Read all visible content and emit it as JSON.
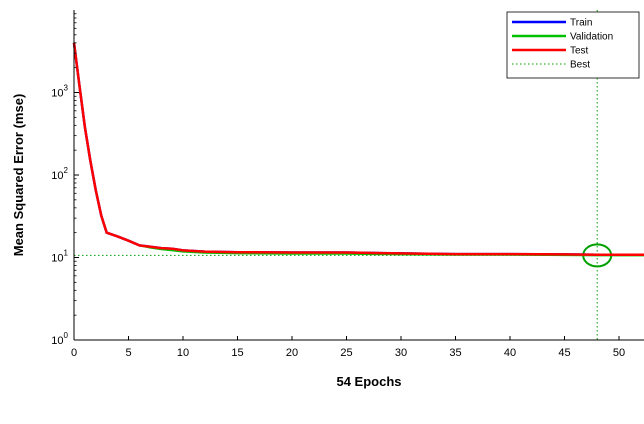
{
  "chart_data": {
    "type": "line",
    "title": "",
    "xlabel": "54 Epochs",
    "ylabel": "Mean Squared Error  (mse)",
    "xlim": [
      0,
      54
    ],
    "ylim": [
      1,
      10000
    ],
    "yscale": "log",
    "x_ticks": [
      0,
      5,
      10,
      15,
      20,
      25,
      30,
      35,
      40,
      45,
      50
    ],
    "y_ticks": [
      {
        "value": 1,
        "base": "10",
        "exp": "0"
      },
      {
        "value": 10,
        "base": "10",
        "exp": "1"
      },
      {
        "value": 100,
        "base": "10",
        "exp": "2"
      },
      {
        "value": 1000,
        "base": "10",
        "exp": "3"
      }
    ],
    "grid": false,
    "legend_position": "top-right",
    "series": [
      {
        "name": "Train",
        "color": "#0000ff",
        "x": [
          0,
          0.5,
          1,
          1.5,
          2,
          2.5,
          3,
          4,
          5,
          6,
          7,
          8,
          9,
          10,
          12,
          15,
          20,
          25,
          30,
          35,
          40,
          45,
          48,
          50,
          54
        ],
        "values": [
          4000,
          1200,
          380,
          150,
          65,
          32,
          20,
          18,
          16,
          14,
          13.5,
          13,
          12.8,
          12.2,
          11.8,
          11.6,
          11.5,
          11.5,
          11.2,
          11.0,
          11.0,
          10.9,
          10.8,
          10.8,
          10.8
        ]
      },
      {
        "name": "Validation",
        "color": "#00c000",
        "x": [
          0,
          0.5,
          1,
          1.5,
          2,
          2.5,
          3,
          4,
          5,
          6,
          7,
          8,
          9,
          10,
          12,
          15,
          20,
          25,
          30,
          35,
          40,
          45,
          48,
          50,
          54
        ],
        "values": [
          4000,
          1200,
          380,
          150,
          65,
          32,
          20,
          18,
          16,
          14,
          13.2,
          12.6,
          12.2,
          11.8,
          11.4,
          11.2,
          11.1,
          11.1,
          10.9,
          10.8,
          10.8,
          10.7,
          10.6,
          10.6,
          10.6
        ]
      },
      {
        "name": "Test",
        "color": "#ff0000",
        "x": [
          0,
          0.5,
          1,
          1.5,
          2,
          2.5,
          3,
          4,
          5,
          6,
          7,
          8,
          9,
          10,
          12,
          15,
          20,
          25,
          30,
          35,
          40,
          45,
          48,
          50,
          54
        ],
        "values": [
          4000,
          1200,
          380,
          150,
          65,
          32,
          20,
          18,
          16,
          14,
          13.5,
          13,
          12.8,
          12.2,
          11.8,
          11.6,
          11.5,
          11.5,
          11.2,
          11.0,
          11.0,
          10.9,
          10.8,
          10.8,
          10.8
        ]
      }
    ],
    "best": {
      "label": "Best",
      "epoch": 48,
      "value": 10.6,
      "color": "#00a000"
    }
  }
}
